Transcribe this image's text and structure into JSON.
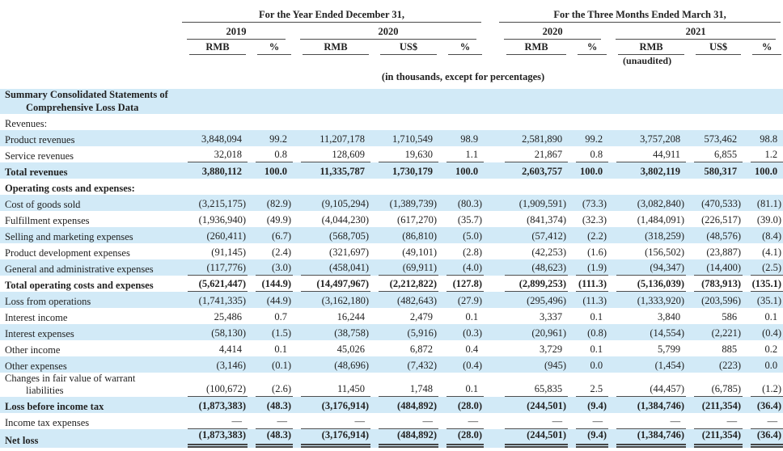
{
  "page": {
    "background": "#ffffff",
    "stripe_color": "#d2eaf7",
    "rule_color": "#4a4a4a"
  },
  "header": {
    "year_group": {
      "title": "For the Year Ended December 31,",
      "years": [
        {
          "label": "2019"
        },
        {
          "label": "2020"
        }
      ]
    },
    "quarter_group": {
      "title": "For the Three Months Ended March 31,",
      "years": [
        {
          "label": "2020"
        },
        {
          "label": "2021"
        }
      ]
    },
    "col_headers": [
      "RMB",
      "%",
      "RMB",
      "US$",
      "%",
      "RMB",
      "%",
      "RMB",
      "US$",
      "%"
    ],
    "unaudited_note": "(unaudited)",
    "units_note": "(in thousands, except for percentages)"
  },
  "table": {
    "rows": [
      {
        "label": "Summary Consolidated Statements of",
        "label2": "Comprehensive Loss Data",
        "style": {
          "bold": true,
          "shaded": true,
          "underline": "none"
        },
        "values": []
      },
      {
        "label": "Revenues:",
        "style": {
          "bold": false,
          "shaded": false,
          "underline": "none"
        },
        "values": []
      },
      {
        "label": "Product revenues",
        "style": {
          "bold": false,
          "shaded": true,
          "underline": "none"
        },
        "values": [
          "3,848,094",
          "99.2",
          "11,207,178",
          "1,710,549",
          "98.9",
          "2,581,890",
          "99.2",
          "3,757,208",
          "573,462",
          "98.8"
        ]
      },
      {
        "label": "Service revenues",
        "style": {
          "bold": false,
          "shaded": false,
          "underline": "single"
        },
        "values": [
          "32,018",
          "0.8",
          "128,609",
          "19,630",
          "1.1",
          "21,867",
          "0.8",
          "44,911",
          "6,855",
          "1.2"
        ]
      },
      {
        "label": "Total revenues",
        "style": {
          "bold": true,
          "shaded": true,
          "underline": "none"
        },
        "values": [
          "3,880,112",
          "100.0",
          "11,335,787",
          "1,730,179",
          "100.0",
          "2,603,757",
          "100.0",
          "3,802,119",
          "580,317",
          "100.0"
        ]
      },
      {
        "label": "Operating costs and expenses:",
        "style": {
          "bold": true,
          "shaded": false,
          "underline": "none"
        },
        "values": []
      },
      {
        "label": "Cost of goods sold",
        "style": {
          "bold": false,
          "shaded": true,
          "underline": "none"
        },
        "values": [
          "(3,215,175)",
          "(82.9)",
          "(9,105,294)",
          "(1,389,739)",
          "(80.3)",
          "(1,909,591)",
          "(73.3)",
          "(3,082,840)",
          "(470,533)",
          "(81.1)"
        ]
      },
      {
        "label": "Fulfillment expenses",
        "style": {
          "bold": false,
          "shaded": false,
          "underline": "none"
        },
        "values": [
          "(1,936,940)",
          "(49.9)",
          "(4,044,230)",
          "(617,270)",
          "(35.7)",
          "(841,374)",
          "(32.3)",
          "(1,484,091)",
          "(226,517)",
          "(39.0)"
        ]
      },
      {
        "label": "Selling and marketing expenses",
        "style": {
          "bold": false,
          "shaded": true,
          "underline": "none"
        },
        "values": [
          "(260,411)",
          "(6.7)",
          "(568,705)",
          "(86,810)",
          "(5.0)",
          "(57,412)",
          "(2.2)",
          "(318,259)",
          "(48,576)",
          "(8.4)"
        ]
      },
      {
        "label": "Product development expenses",
        "style": {
          "bold": false,
          "shaded": false,
          "underline": "none"
        },
        "values": [
          "(91,145)",
          "(2.4)",
          "(321,697)",
          "(49,101)",
          "(2.8)",
          "(42,253)",
          "(1.6)",
          "(156,502)",
          "(23,887)",
          "(4.1)"
        ]
      },
      {
        "label": "General and administrative expenses",
        "style": {
          "bold": false,
          "shaded": true,
          "underline": "single"
        },
        "values": [
          "(117,776)",
          "(3.0)",
          "(458,041)",
          "(69,911)",
          "(4.0)",
          "(48,623)",
          "(1.9)",
          "(94,347)",
          "(14,400)",
          "(2.5)"
        ]
      },
      {
        "label": "Total operating costs and expenses",
        "style": {
          "bold": true,
          "shaded": false,
          "underline": "single"
        },
        "values": [
          "(5,621,447)",
          "(144.9)",
          "(14,497,967)",
          "(2,212,822)",
          "(127.8)",
          "(2,899,253)",
          "(111.3)",
          "(5,136,039)",
          "(783,913)",
          "(135.1)"
        ]
      },
      {
        "label": "Loss from operations",
        "style": {
          "bold": false,
          "shaded": true,
          "underline": "none"
        },
        "values": [
          "(1,741,335)",
          "(44.9)",
          "(3,162,180)",
          "(482,643)",
          "(27.9)",
          "(295,496)",
          "(11.3)",
          "(1,333,920)",
          "(203,596)",
          "(35.1)"
        ]
      },
      {
        "label": "Interest income",
        "style": {
          "bold": false,
          "shaded": false,
          "underline": "none"
        },
        "values": [
          "25,486",
          "0.7",
          "16,244",
          "2,479",
          "0.1",
          "3,337",
          "0.1",
          "3,840",
          "586",
          "0.1"
        ]
      },
      {
        "label": "Interest expenses",
        "style": {
          "bold": false,
          "shaded": true,
          "underline": "none"
        },
        "values": [
          "(58,130)",
          "(1.5)",
          "(38,758)",
          "(5,916)",
          "(0.3)",
          "(20,961)",
          "(0.8)",
          "(14,554)",
          "(2,221)",
          "(0.4)"
        ]
      },
      {
        "label": "Other income",
        "style": {
          "bold": false,
          "shaded": false,
          "underline": "none"
        },
        "values": [
          "4,414",
          "0.1",
          "45,026",
          "6,872",
          "0.4",
          "3,729",
          "0.1",
          "5,799",
          "885",
          "0.2"
        ]
      },
      {
        "label": "Other expenses",
        "style": {
          "bold": false,
          "shaded": true,
          "underline": "none"
        },
        "values": [
          "(3,146)",
          "(0.1)",
          "(48,696)",
          "(7,432)",
          "(0.4)",
          "(945)",
          "0.0",
          "(1,454)",
          "(223)",
          "0.0"
        ]
      },
      {
        "label": "Changes in fair value of warrant",
        "label2": "liabilities",
        "style": {
          "bold": false,
          "shaded": false,
          "underline": "single"
        },
        "values": [
          "(100,672)",
          "(2.6)",
          "11,450",
          "1,748",
          "0.1",
          "65,835",
          "2.5",
          "(44,457)",
          "(6,785)",
          "(1.2)"
        ]
      },
      {
        "label": "Loss before income tax",
        "style": {
          "bold": true,
          "shaded": true,
          "underline": "none"
        },
        "values": [
          "(1,873,383)",
          "(48.3)",
          "(3,176,914)",
          "(484,892)",
          "(28.0)",
          "(244,501)",
          "(9.4)",
          "(1,384,746)",
          "(211,354)",
          "(36.4)"
        ]
      },
      {
        "label": "Income tax expenses",
        "style": {
          "bold": false,
          "shaded": false,
          "underline": "single"
        },
        "values": [
          "—",
          "—",
          "—",
          "—",
          "—",
          "—",
          "—",
          "—",
          "—",
          "—"
        ]
      },
      {
        "label": "Net loss",
        "style": {
          "bold": true,
          "shaded": true,
          "underline": "double"
        },
        "values": [
          "(1,873,383)",
          "(48.3)",
          "(3,176,914)",
          "(484,892)",
          "(28.0)",
          "(244,501)",
          "(9.4)",
          "(1,384,746)",
          "(211,354)",
          "(36.4)"
        ]
      }
    ]
  }
}
